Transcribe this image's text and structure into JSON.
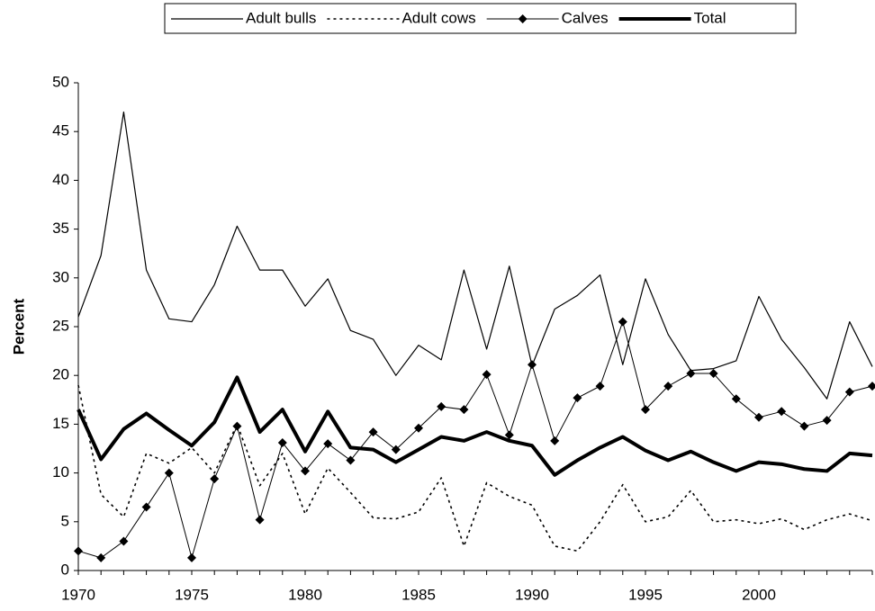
{
  "chart_data": {
    "type": "line",
    "ylabel": "Percent",
    "x": [
      1970,
      1971,
      1972,
      1973,
      1974,
      1975,
      1976,
      1977,
      1978,
      1979,
      1980,
      1981,
      1982,
      1983,
      1984,
      1985,
      1986,
      1987,
      1988,
      1989,
      1990,
      1991,
      1992,
      1993,
      1994,
      1995,
      1996,
      1997,
      1998,
      1999,
      2000,
      2001,
      2002,
      2003,
      2004,
      2005
    ],
    "xlim": [
      1970,
      2005
    ],
    "xticks": [
      1970,
      1975,
      1980,
      1985,
      1990,
      1995,
      2000
    ],
    "ylim": [
      0,
      50
    ],
    "yticks": [
      0,
      5,
      10,
      15,
      20,
      25,
      30,
      35,
      40,
      45,
      50
    ],
    "legend": "top",
    "series": [
      {
        "name": "Adult bulls",
        "color": "#000000",
        "width": 1.2,
        "style": "solid",
        "marker": "none",
        "values": [
          26,
          32.3,
          47,
          30.8,
          25.8,
          25.5,
          29.3,
          35.3,
          30.8,
          30.8,
          27.1,
          29.9,
          24.6,
          23.7,
          20,
          23.1,
          21.6,
          30.8,
          22.7,
          31.2,
          21,
          26.8,
          28.2,
          30.3,
          21.1,
          29.9,
          24.2,
          20.5,
          20.7,
          21.5,
          28.1,
          23.7,
          20.8,
          17.6,
          25.5,
          20.9
        ]
      },
      {
        "name": "Adult cows",
        "color": "#000000",
        "width": 1.6,
        "style": "dotted",
        "marker": "none",
        "values": [
          19,
          7.8,
          5.5,
          12,
          11,
          12.6,
          10,
          15,
          8.7,
          12,
          5.8,
          10.5,
          8,
          5.4,
          5.3,
          6,
          9.5,
          2.5,
          9,
          7.6,
          6.7,
          2.5,
          2,
          5,
          8.8,
          5,
          5.5,
          8.2,
          5,
          5.2,
          4.8,
          5.3,
          4.2,
          5.2,
          5.8,
          5.1
        ]
      },
      {
        "name": "Calves",
        "color": "#000000",
        "width": 1,
        "style": "solid",
        "marker": "diamond",
        "values": [
          2,
          1.3,
          3,
          6.5,
          10,
          1.3,
          9.4,
          14.8,
          5.2,
          13.1,
          10.2,
          13,
          11.3,
          14.2,
          12.4,
          14.6,
          16.8,
          16.5,
          20.1,
          13.9,
          21.1,
          13.3,
          17.7,
          18.9,
          25.5,
          16.5,
          18.9,
          20.2,
          20.2,
          17.6,
          15.7,
          16.3,
          14.8,
          15.4,
          18.3,
          18.9
        ]
      },
      {
        "name": "Total",
        "color": "#000000",
        "width": 4,
        "style": "solid",
        "marker": "none",
        "values": [
          16.5,
          11.4,
          14.5,
          16.1,
          14.4,
          12.8,
          15.2,
          19.8,
          14.2,
          16.5,
          12.2,
          16.3,
          12.6,
          12.4,
          11.1,
          12.4,
          13.7,
          13.3,
          14.2,
          13.3,
          12.8,
          9.8,
          11.3,
          12.6,
          13.7,
          12.3,
          11.3,
          12.2,
          11.1,
          10.2,
          11.1,
          10.9,
          10.4,
          10.2,
          12,
          11.8
        ]
      }
    ]
  }
}
